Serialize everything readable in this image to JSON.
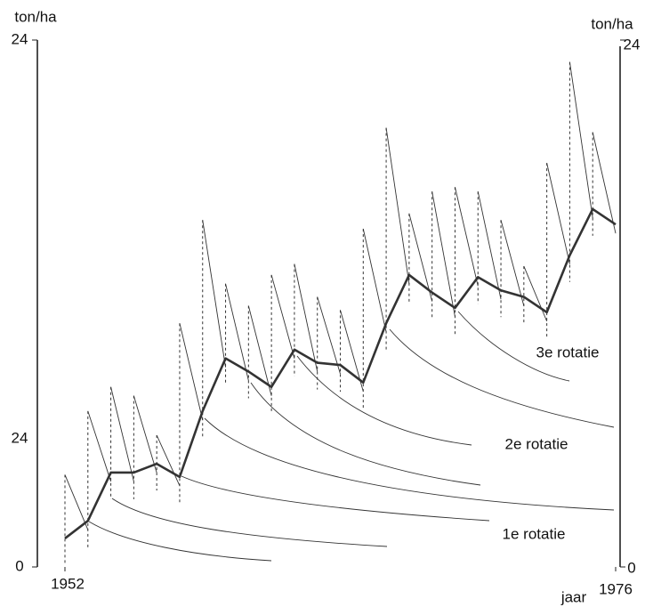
{
  "chart_data": {
    "type": "line",
    "y_label": "ton/ha",
    "y2_label": "ton/ha",
    "x_label": "jaar",
    "x": [
      1952,
      1953,
      1954,
      1955,
      1956,
      1957,
      1958,
      1959,
      1960,
      1961,
      1962,
      1963,
      1964,
      1965,
      1966,
      1967,
      1968,
      1969,
      1970,
      1971,
      1972,
      1973,
      1974,
      1975,
      1976
    ],
    "xlim": [
      1952,
      1976
    ],
    "xticks": [
      1952,
      1976
    ],
    "ylim": [
      0,
      24
    ],
    "yticks": [
      0,
      24
    ],
    "y2lim": [
      0,
      24
    ],
    "y2ticks": [
      0,
      24
    ],
    "series": [
      {
        "color": "#333333",
        "style": "thick",
        "values": [
          1.3,
          2.1,
          4.3,
          4.3,
          4.7,
          4.1,
          7.1,
          9.5,
          8.9,
          8.2,
          9.9,
          9.3,
          9.2,
          8.4,
          11.1,
          13.3,
          12.5,
          11.8,
          13.2,
          12.6,
          12.3,
          11.6,
          14.2,
          16.3,
          15.6
        ]
      },
      {
        "color": "#333333",
        "style": "spike",
        "values": [
          4.2,
          7.1,
          8.2,
          7.8,
          6.0,
          11.1,
          15.8,
          12.9,
          11.9,
          13.3,
          13.8,
          12.3,
          11.7,
          15.4,
          20.0,
          16.1,
          17.1,
          17.3,
          17.1,
          15.8,
          13.7,
          18.4,
          23.0,
          19.8,
          null
        ]
      }
    ],
    "annotations": [
      "3e rotatie",
      "2e rotatie",
      "1e rotatie",
      "24"
    ]
  }
}
